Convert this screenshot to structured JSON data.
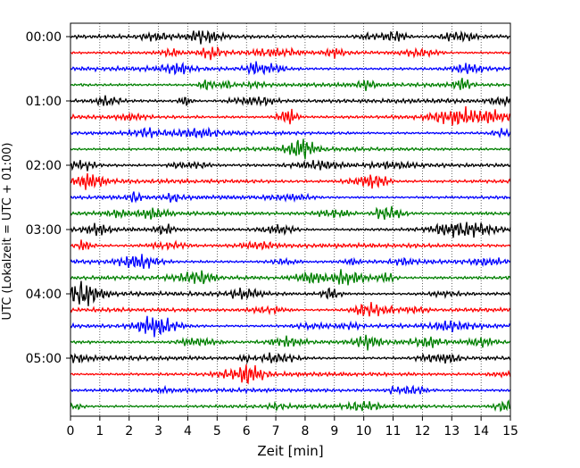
{
  "chart_data": {
    "type": "line",
    "subtype": "helicorder",
    "title": "",
    "xlabel": "Zeit  [min]",
    "ylabel": "UTC (Lokalzeit = UTC + 01:00)",
    "xlim": [
      0,
      15
    ],
    "x_ticks": [
      "0",
      "1",
      "2",
      "3",
      "4",
      "5",
      "6",
      "7",
      "8",
      "9",
      "10",
      "11",
      "12",
      "13",
      "14",
      "15"
    ],
    "y_tick_labels": [
      "00:00",
      "01:00",
      "02:00",
      "03:00",
      "04:00",
      "05:00"
    ],
    "row_interval_minutes": 15,
    "row_count": 24,
    "rows_per_hour": 4,
    "color_cycle": [
      "#000000",
      "#ff0000",
      "#0000ff",
      "#008000"
    ],
    "vertical_grid": "dotted at every minute",
    "legend": "none"
  }
}
